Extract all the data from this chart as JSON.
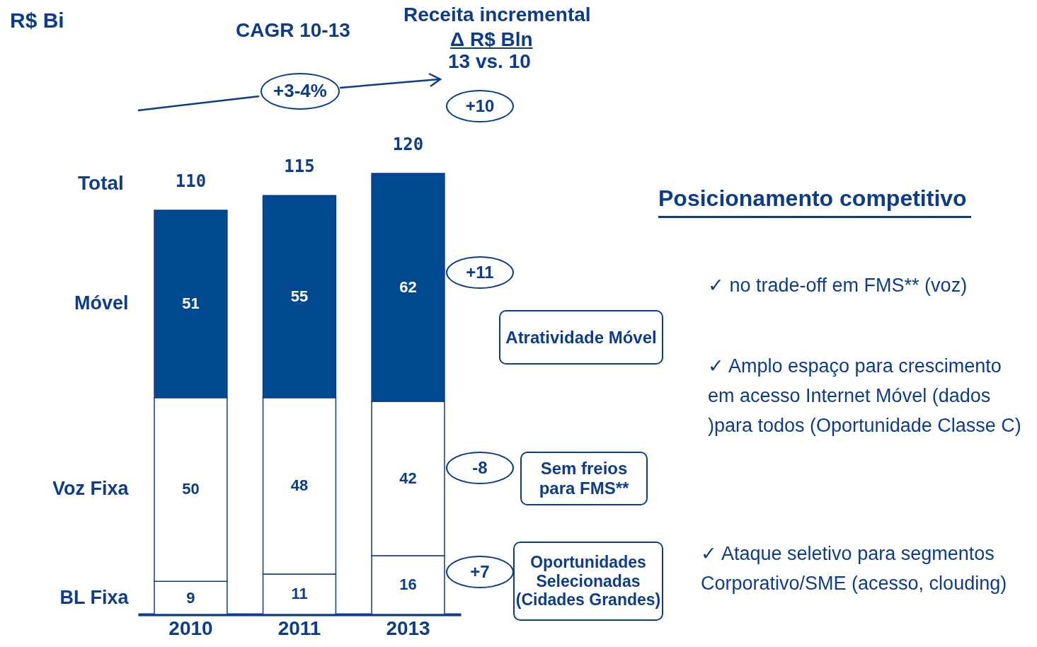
{
  "chart_data": {
    "type": "bar",
    "stacked": true,
    "data_labels": true,
    "categories": [
      "2010",
      "2011",
      "2013"
    ],
    "series": [
      {
        "name": "BL Fixa",
        "color": "#ffffff",
        "values": [
          9,
          11,
          16
        ]
      },
      {
        "name": "Voz Fixa",
        "color": "#ffffff",
        "values": [
          50,
          48,
          42
        ]
      },
      {
        "name": "Móvel",
        "color": "#004990",
        "values": [
          51,
          55,
          62
        ]
      }
    ],
    "totals": [
      "110",
      "115",
      "120"
    ],
    "annotations": [
      "R$ Bi",
      "Total",
      "CAGR 10-13",
      "+3-4%",
      "Receita incremental",
      "Δ R$ Bln",
      "13 vs. 10",
      "+10",
      "+11",
      "Atratividade Móvel",
      "-8",
      "Sem freios para FMS**",
      "+7",
      "Oportunidades Selecionadas (Cidades Grandes)",
      "Posicionamento competitivo",
      "✓ no trade-off em FMS** (voz)",
      "✓ Amplo espaço para crescimento em acesso Internet Móvel (dados )para todos (Oportunidade Classe C)",
      "✓ Ataque seletivo para segmentos Corporativo/SME (acesso, clouding)"
    ]
  }
}
